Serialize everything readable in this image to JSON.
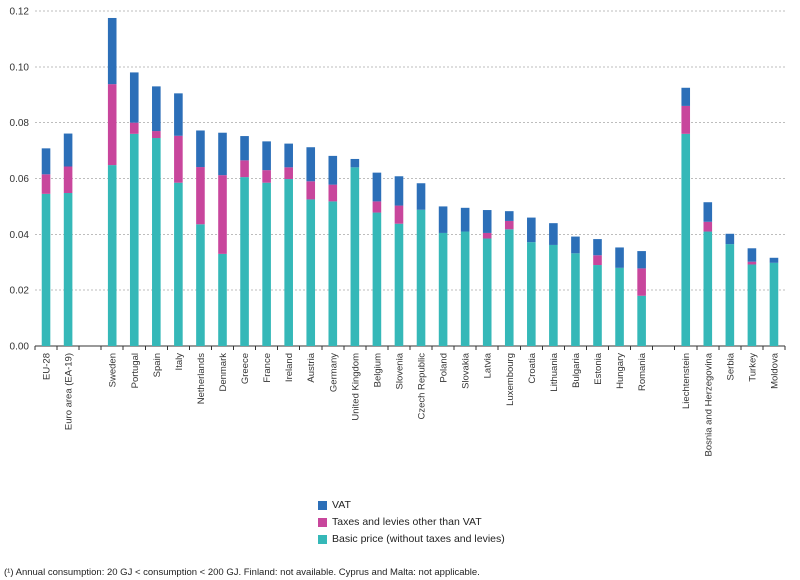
{
  "chart_data": {
    "type": "bar",
    "stacked": true,
    "categories": [
      "EU-28",
      "Euro area (EA-19)",
      "",
      "Sweden",
      "Portugal",
      "Spain",
      "Italy",
      "Netherlands",
      "Denmark",
      "Greece",
      "France",
      "Ireland",
      "Austria",
      "Germany",
      "United Kingdom",
      "Belgium",
      "Slovenia",
      "Czech Republic",
      "Poland",
      "Slovakia",
      "Latvia",
      "Luxembourg",
      "Croatia",
      "Lithuania",
      "Bulgaria",
      "Estonia",
      "Hungary",
      "Romania",
      "",
      "Liechtenstein",
      "Bosnia and Herzegovina",
      "Serbia",
      "Turkey",
      "Moldova"
    ],
    "series": [
      {
        "name": "Basic price (without taxes and levies)",
        "color": "#35B8B8",
        "values": [
          0.0545,
          0.0548,
          null,
          0.0648,
          0.076,
          0.0745,
          0.0585,
          0.0436,
          0.033,
          0.0605,
          0.0585,
          0.0598,
          0.0525,
          0.0518,
          0.064,
          0.0478,
          0.0438,
          0.0488,
          0.0405,
          0.041,
          0.0385,
          0.0418,
          0.0372,
          0.0362,
          0.0332,
          0.029,
          0.028,
          0.018,
          null,
          0.076,
          0.041,
          0.0365,
          0.0292,
          0.0298
        ]
      },
      {
        "name": "Taxes and levies other than VAT",
        "color": "#C8469C",
        "values": [
          0.007,
          0.0095,
          null,
          0.029,
          0.004,
          0.0025,
          0.0168,
          0.0205,
          0.0282,
          0.006,
          0.0045,
          0.0042,
          0.0065,
          0.006,
          0.0,
          0.004,
          0.0065,
          0.0,
          0.0,
          0.0,
          0.002,
          0.003,
          0.0,
          0.0,
          0.0,
          0.0035,
          0.0,
          0.0098,
          null,
          0.01,
          0.0035,
          0.0,
          0.001,
          0.0
        ]
      },
      {
        "name": "VAT",
        "color": "#2C6FB8",
        "values": [
          0.0093,
          0.0118,
          null,
          0.0237,
          0.018,
          0.016,
          0.0152,
          0.0131,
          0.0152,
          0.0087,
          0.0103,
          0.0085,
          0.0122,
          0.0103,
          0.003,
          0.0103,
          0.0105,
          0.0095,
          0.0095,
          0.0085,
          0.0082,
          0.0035,
          0.0088,
          0.0078,
          0.006,
          0.0058,
          0.0073,
          0.0062,
          null,
          0.0065,
          0.007,
          0.0037,
          0.0048,
          0.0018
        ]
      }
    ],
    "ylim": [
      0,
      0.12
    ],
    "yticks": [
      "0.00",
      "0.02",
      "0.04",
      "0.06",
      "0.08",
      "0.10",
      "0.12"
    ],
    "grid": true,
    "legend": "bottom-center"
  },
  "legend": [
    {
      "label": "VAT",
      "color": "#2C6FB8"
    },
    {
      "label": "Taxes and levies other than VAT",
      "color": "#C8469C"
    },
    {
      "label": "Basic price (without taxes and levies)",
      "color": "#35B8B8"
    }
  ],
  "footnote": "(¹) Annual consumption: 20 GJ < consumption < 200 GJ. Finland: not available. Cyprus and Malta: not applicable."
}
